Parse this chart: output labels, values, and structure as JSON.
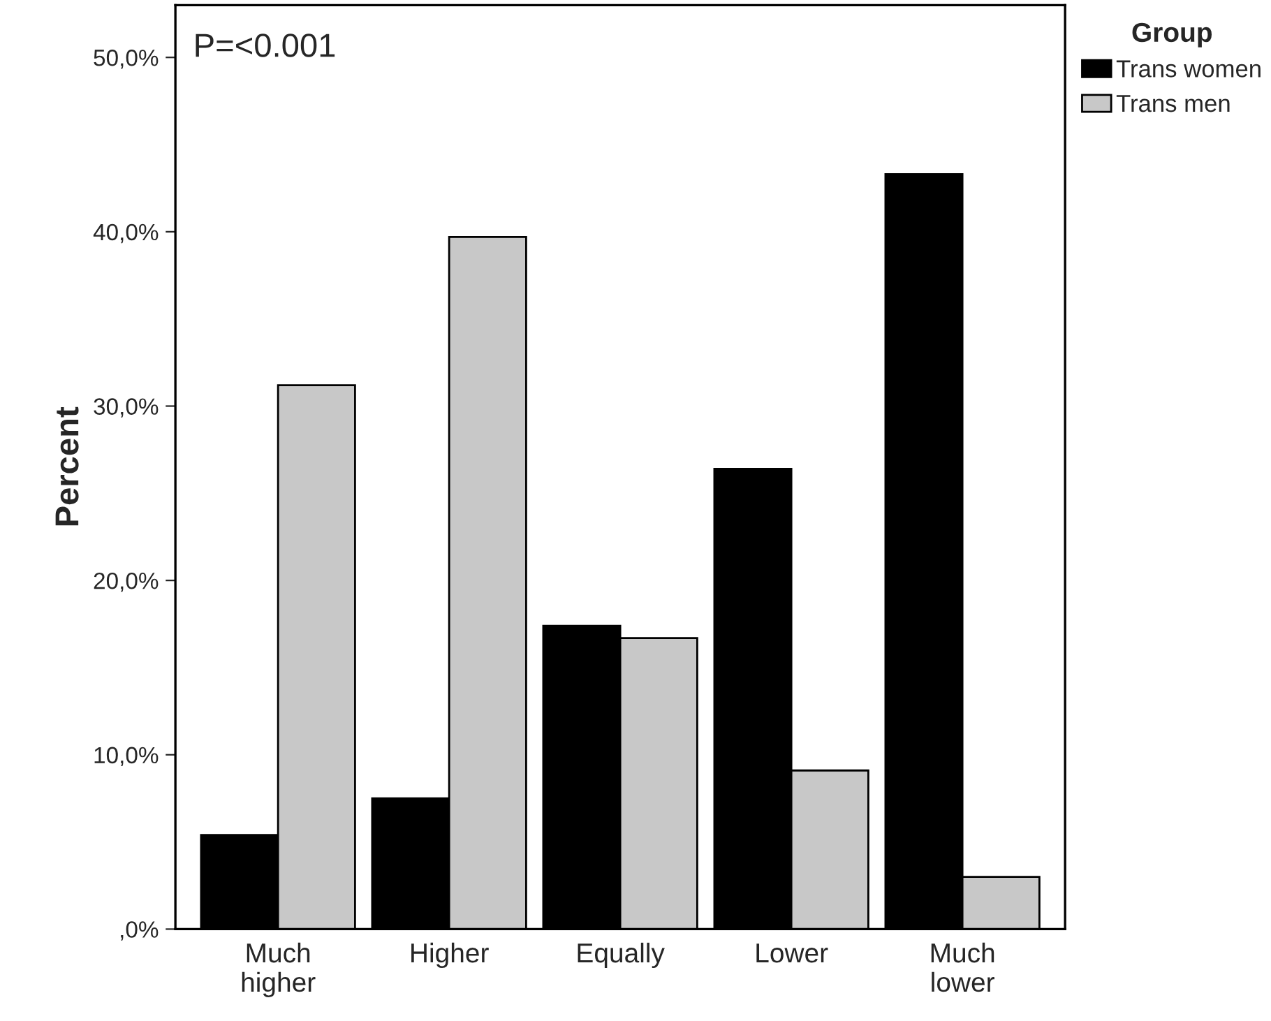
{
  "chart_data": {
    "type": "bar",
    "ylabel": "Percent",
    "legend_title": "Group",
    "legend": "top right",
    "grid": false,
    "categories": [
      "Much\nhigher",
      "Higher",
      "Equally",
      "Lower",
      "Much\nlower"
    ],
    "series": [
      {
        "name": "Trans women",
        "color": "#000000",
        "values": [
          5.4,
          7.5,
          17.4,
          26.4,
          43.3
        ]
      },
      {
        "name": "Trans men",
        "color": "#c8c8c8",
        "values": [
          31.2,
          39.7,
          16.7,
          9.1,
          3.0
        ]
      }
    ],
    "ylim": [
      0,
      53
    ],
    "yticks": [
      {
        "value": 0,
        "label": ",0%"
      },
      {
        "value": 10,
        "label": "10,0%"
      },
      {
        "value": 20,
        "label": "20,0%"
      },
      {
        "value": 30,
        "label": "30,0%"
      },
      {
        "value": 40,
        "label": "40,0%"
      },
      {
        "value": 50,
        "label": "50,0%"
      }
    ],
    "annotations": [
      "P=<0.001"
    ]
  }
}
